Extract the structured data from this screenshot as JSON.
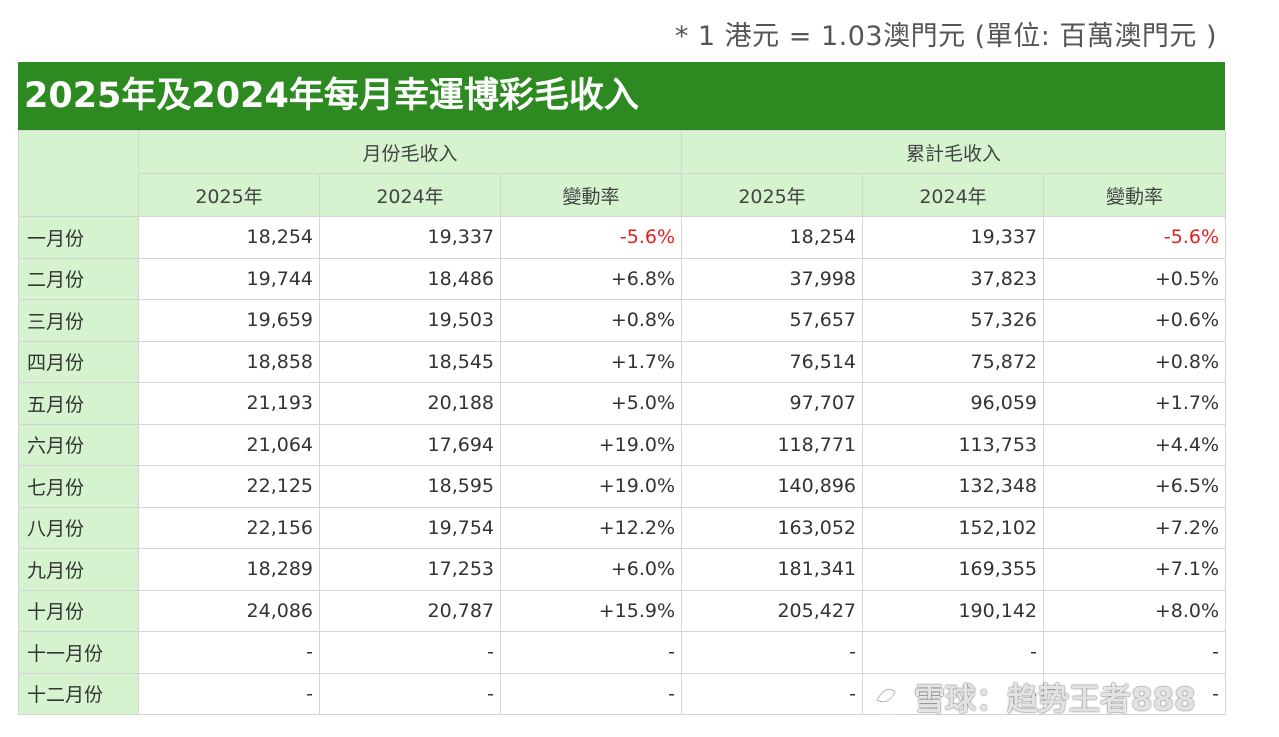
{
  "note": "* 1 港元 = 1.03澳門元 (單位: 百萬澳門元 )",
  "title": "2025年及2024年每月幸運博彩毛收入",
  "group_headers": [
    "月份毛收入",
    "累計毛收入"
  ],
  "sub_headers": [
    "2025年",
    "2024年",
    "變動率",
    "2025年",
    "2024年",
    "變動率"
  ],
  "rows": [
    {
      "month": "一月份",
      "cells": [
        "18,254",
        "19,337",
        "-5.6%",
        "18,254",
        "19,337",
        "-5.6%"
      ]
    },
    {
      "month": "二月份",
      "cells": [
        "19,744",
        "18,486",
        "+6.8%",
        "37,998",
        "37,823",
        "+0.5%"
      ]
    },
    {
      "month": "三月份",
      "cells": [
        "19,659",
        "19,503",
        "+0.8%",
        "57,657",
        "57,326",
        "+0.6%"
      ]
    },
    {
      "month": "四月份",
      "cells": [
        "18,858",
        "18,545",
        "+1.7%",
        "76,514",
        "75,872",
        "+0.8%"
      ]
    },
    {
      "month": "五月份",
      "cells": [
        "21,193",
        "20,188",
        "+5.0%",
        "97,707",
        "96,059",
        "+1.7%"
      ]
    },
    {
      "month": "六月份",
      "cells": [
        "21,064",
        "17,694",
        "+19.0%",
        "118,771",
        "113,753",
        "+4.4%"
      ]
    },
    {
      "month": "七月份",
      "cells": [
        "22,125",
        "18,595",
        "+19.0%",
        "140,896",
        "132,348",
        "+6.5%"
      ]
    },
    {
      "month": "八月份",
      "cells": [
        "22,156",
        "19,754",
        "+12.2%",
        "163,052",
        "152,102",
        "+7.2%"
      ]
    },
    {
      "month": "九月份",
      "cells": [
        "18,289",
        "17,253",
        "+6.0%",
        "181,341",
        "169,355",
        "+7.1%"
      ]
    },
    {
      "month": "十月份",
      "cells": [
        "24,086",
        "20,787",
        "+15.9%",
        "205,427",
        "190,142",
        "+8.0%"
      ]
    },
    {
      "month": "十一月份",
      "cells": [
        "-",
        "-",
        "-",
        "-",
        "-",
        "-"
      ]
    },
    {
      "month": "十二月份",
      "cells": [
        "-",
        "-",
        "-",
        "-",
        "-",
        "-"
      ]
    }
  ],
  "watermark": "雪球：趋势王者888",
  "colors": {
    "title_bg": "#2d8a21",
    "header_bg": "#d6f3cf",
    "negative": "#e02020"
  }
}
